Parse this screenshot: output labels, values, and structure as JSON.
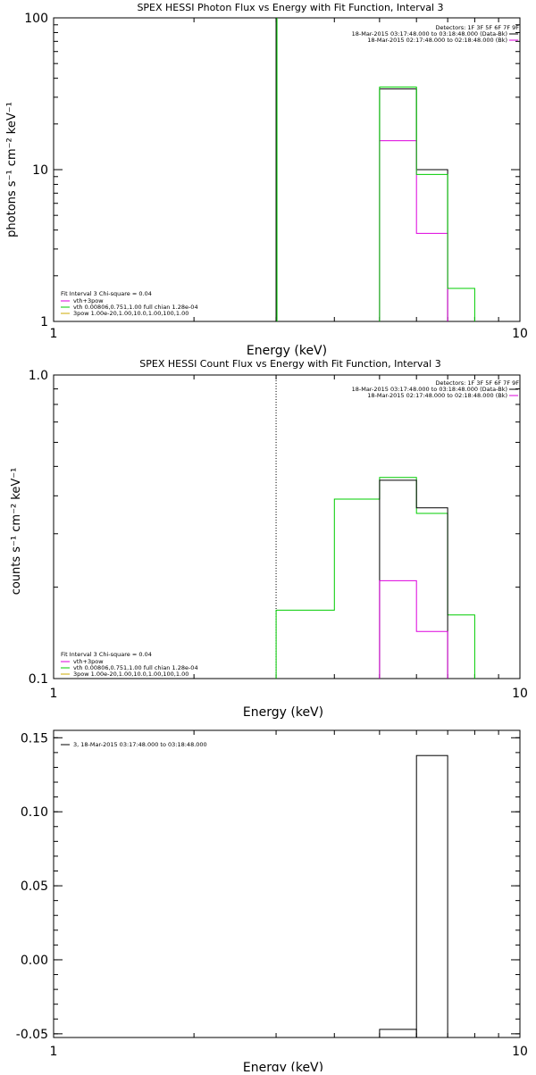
{
  "chart_data": [
    {
      "type": "line",
      "title": "SPEX HESSI Photon Flux vs Energy with Fit Function, Interval 3",
      "xlabel": "Energy (keV)",
      "ylabel": "photons s⁻¹ cm⁻² keV⁻¹",
      "xscale": "log",
      "yscale": "log",
      "xlim": [
        1,
        10
      ],
      "ylim": [
        1,
        100
      ],
      "x_ticks": [
        1,
        10
      ],
      "y_ticks": [
        1,
        10,
        100
      ],
      "x_tick_labels": [
        "1",
        "10"
      ],
      "y_tick_labels": [
        "1",
        "10",
        "100"
      ],
      "header_lines": [
        "Detectors: 1F 3F 5F 6F 7F 9F",
        "18-Mar-2015 03:17:48.000 to 03:18:48.000 (Data-Bk)",
        "18-Mar-2015 02:17:48.000 to 02:18:48.000 (Bk)"
      ],
      "fit_text": {
        "title": "Fit Interval 3   Chi-square = 0.04",
        "lines": [
          "vth+3pow",
          "vth 0.00806,0.751,1.00  full chian 1.28e-04",
          "3pow 1.00e-20,1.00,10.0,1.00,100,1.00"
        ]
      },
      "vline_x": 3,
      "series": [
        {
          "color": "#000000",
          "x": [
            5,
            6,
            6,
            7
          ],
          "y": [
            34,
            34,
            10,
            10
          ]
        },
        {
          "color": "#dd00dd",
          "x": [
            5,
            6,
            6,
            7
          ],
          "y": [
            15.5,
            15.5,
            3.8,
            3.8
          ]
        },
        {
          "color": "#00cc00",
          "x": [
            5,
            6,
            6,
            7,
            7,
            8
          ],
          "y": [
            35,
            35,
            9.3,
            9.3,
            1.65,
            1.65
          ]
        }
      ]
    },
    {
      "type": "line",
      "title": "SPEX HESSI Count Flux vs Energy with Fit Function, Interval 3",
      "xlabel": "Energy (keV)",
      "ylabel": "counts s⁻¹ cm⁻² keV⁻¹",
      "xscale": "log",
      "yscale": "log",
      "xlim": [
        1,
        10
      ],
      "ylim": [
        0.1,
        1.0
      ],
      "x_ticks": [
        1,
        10
      ],
      "y_ticks": [
        0.1,
        1.0
      ],
      "x_tick_labels": [
        "1",
        "10"
      ],
      "y_tick_labels": [
        "0.1",
        "1.0"
      ],
      "header_lines": [
        "Detectors: 1F 3F 5F 6F 7F 9F",
        "18-Mar-2015 03:17:48.000 to 03:18:48.000 (Data-Bk)",
        "18-Mar-2015 02:17:48.000 to 02:18:48.000 (Bk)"
      ],
      "fit_text": {
        "title": "Fit Interval 3   Chi-square = 0.04",
        "lines": [
          "vth+3pow",
          "vth 0.00806,0.751,1.00  full chian 1.28e-04",
          "3pow 1.00e-20,1.00,10.0,1.00,100,1.00"
        ]
      },
      "vline_x": 3,
      "series": [
        {
          "color": "#00cc00",
          "x": [
            3,
            4,
            4,
            5,
            5,
            6,
            6,
            7,
            7,
            8
          ],
          "y": [
            0.168,
            0.168,
            0.39,
            0.39,
            0.46,
            0.46,
            0.35,
            0.35,
            0.162,
            0.162
          ]
        },
        {
          "color": "#000000",
          "x": [
            5,
            6,
            6,
            7
          ],
          "y": [
            0.45,
            0.45,
            0.365,
            0.365
          ]
        },
        {
          "color": "#dd00dd",
          "x": [
            5,
            6,
            6,
            7
          ],
          "y": [
            0.21,
            0.21,
            0.143,
            0.143
          ]
        }
      ]
    },
    {
      "type": "bar",
      "title": "",
      "xlabel": "Energy (keV)",
      "ylabel": "",
      "xscale": "log",
      "yscale": "linear",
      "xlim": [
        1,
        10
      ],
      "ylim": [
        -0.0525,
        0.155
      ],
      "x_ticks": [
        1,
        10
      ],
      "y_ticks": [
        0.15,
        0.1,
        0.05,
        0.0,
        -0.05
      ],
      "x_tick_labels": [
        "1",
        "10"
      ],
      "y_tick_labels": [
        "0.15",
        "0.10",
        "0.05",
        "0.00",
        "-0.05"
      ],
      "legend": "3, 18-Mar-2015 03:17:48.000 to 03:18:48.000",
      "series": [
        {
          "color": "#000000",
          "bins": [
            [
              5,
              6,
              -0.047
            ],
            [
              6,
              7,
              0.138
            ]
          ]
        }
      ]
    }
  ]
}
